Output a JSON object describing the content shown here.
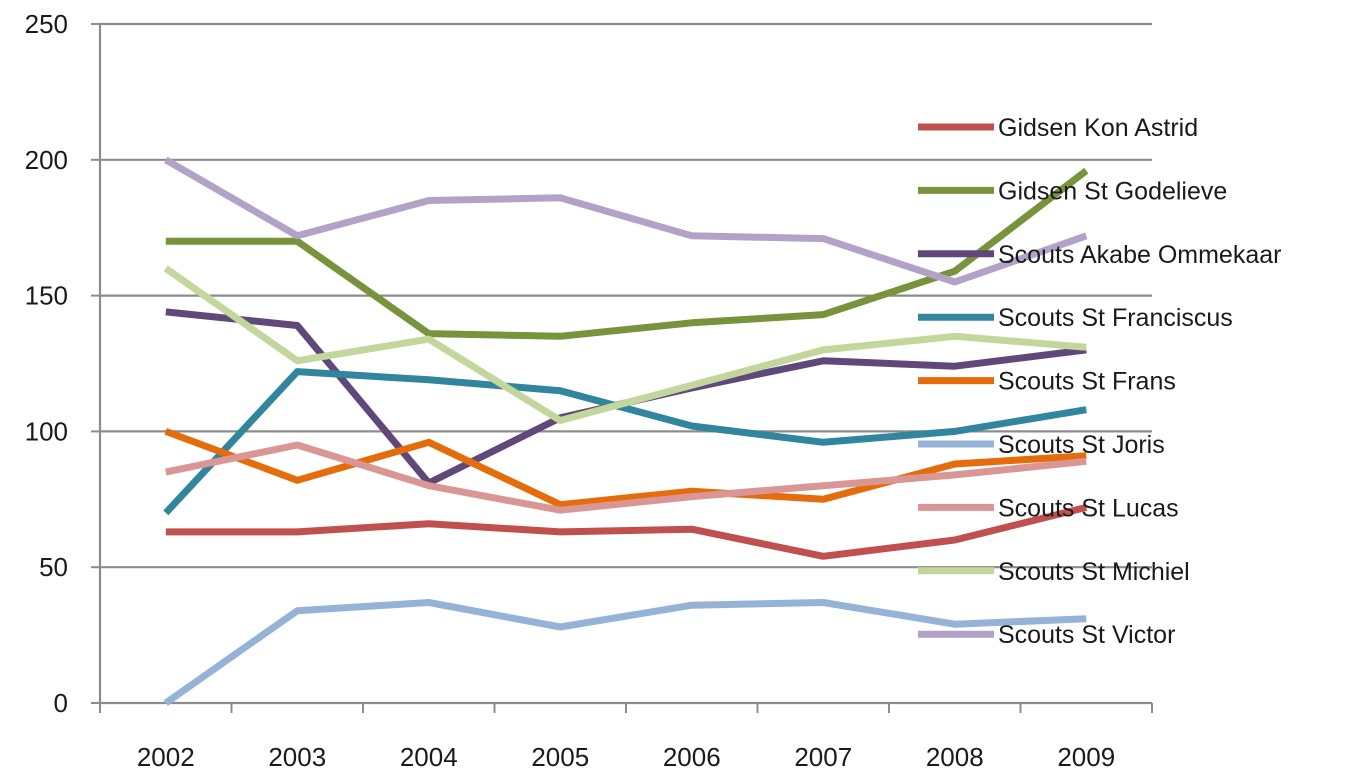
{
  "chart_data": {
    "type": "line",
    "title": "",
    "xlabel": "",
    "ylabel": "",
    "categories": [
      "2002",
      "2003",
      "2004",
      "2005",
      "2006",
      "2007",
      "2008",
      "2009"
    ],
    "ylim": [
      0,
      250
    ],
    "yticks": [
      0,
      50,
      100,
      150,
      200,
      250
    ],
    "grid": "horizontal",
    "legend_position": "right",
    "series": [
      {
        "name": "Gidsen Kon Astrid",
        "color": "#c0504d",
        "values": [
          63,
          63,
          66,
          63,
          64,
          54,
          60,
          72
        ]
      },
      {
        "name": "Gidsen St Godelieve",
        "color": "#77933c",
        "values": [
          170,
          170,
          136,
          135,
          140,
          143,
          159,
          196
        ]
      },
      {
        "name": "Scouts Akabe Ommekaar",
        "color": "#60497a",
        "values": [
          144,
          139,
          81,
          105,
          116,
          126,
          124,
          130
        ]
      },
      {
        "name": "Scouts St Franciscus",
        "color": "#31859c",
        "values": [
          70,
          122,
          119,
          115,
          102,
          96,
          100,
          108
        ]
      },
      {
        "name": "Scouts St Frans",
        "color": "#e46c0a",
        "values": [
          100,
          82,
          96,
          73,
          78,
          75,
          88,
          91
        ]
      },
      {
        "name": "Scouts St Joris",
        "color": "#95b3d7",
        "values": [
          0,
          34,
          37,
          28,
          36,
          37,
          29,
          31
        ]
      },
      {
        "name": "Scouts St Lucas",
        "color": "#d99694",
        "values": [
          85,
          95,
          80,
          71,
          76,
          80,
          84,
          89
        ]
      },
      {
        "name": "Scouts St Michiel",
        "color": "#c3d69b",
        "values": [
          160,
          126,
          134,
          104,
          117,
          130,
          135,
          131
        ]
      },
      {
        "name": "Scouts St Victor",
        "color": "#b3a2c7",
        "values": [
          200,
          172,
          185,
          186,
          172,
          171,
          155,
          172
        ]
      }
    ]
  }
}
